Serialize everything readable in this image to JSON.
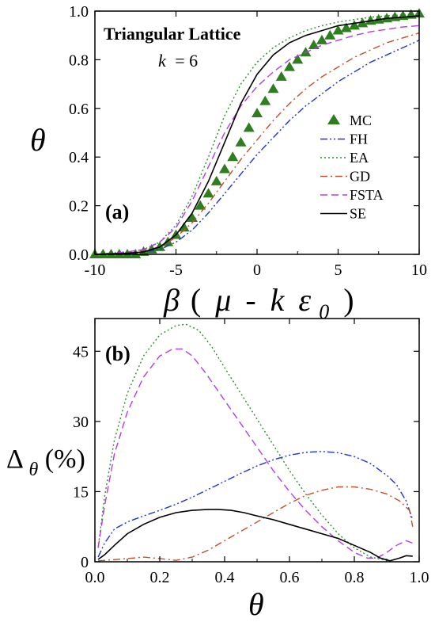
{
  "chart_data": [
    {
      "type": "line",
      "panel_label": "(a)",
      "heading": "Triangular Lattice",
      "parameter": {
        "symbol": "k",
        "equals": "= 6"
      },
      "ylabel": "θ",
      "xlabel": {
        "beta": "β",
        "open": "(",
        "mu": "μ",
        "minus": "-",
        "k": "k",
        "eps": "ε",
        "sub": "0",
        "close": ")"
      },
      "xlim": [
        -10,
        10
      ],
      "ylim": [
        0,
        1
      ],
      "xticks": [
        "-10",
        "-5",
        "0",
        "5",
        "10"
      ],
      "yticks": [
        "0.0",
        "0.2",
        "0.4",
        "0.6",
        "0.8",
        "1.0"
      ],
      "legend_position": "right",
      "series": [
        {
          "name": "MC",
          "style": "triangle",
          "color": "#2e7d1e",
          "x": [
            -10,
            -9.5,
            -9,
            -8.5,
            -8,
            -7.5,
            -7,
            -6.5,
            -6,
            -5.5,
            -5,
            -4.5,
            -4,
            -3.5,
            -3,
            -2.5,
            -2,
            -1.5,
            -1,
            -0.5,
            0,
            0.5,
            1,
            1.5,
            2,
            2.5,
            3,
            3.5,
            4,
            4.5,
            5,
            5.5,
            6,
            6.5,
            7,
            7.5,
            8,
            8.5,
            9,
            9.5,
            10
          ],
          "y": [
            0.0,
            0.0,
            0.0,
            0.0,
            0.0,
            0.0,
            0.01,
            0.02,
            0.03,
            0.05,
            0.08,
            0.11,
            0.15,
            0.2,
            0.25,
            0.3,
            0.35,
            0.4,
            0.46,
            0.52,
            0.58,
            0.63,
            0.68,
            0.73,
            0.77,
            0.8,
            0.83,
            0.86,
            0.88,
            0.9,
            0.92,
            0.93,
            0.94,
            0.95,
            0.96,
            0.965,
            0.97,
            0.975,
            0.98,
            0.985,
            0.99
          ]
        },
        {
          "name": "FH",
          "style": "dashdotdot",
          "color": "#2233cc",
          "x": [
            -10,
            -8,
            -6,
            -5,
            -4,
            -3,
            -2,
            -1,
            0,
            1,
            2,
            3,
            4,
            5,
            6,
            7,
            8,
            9,
            10
          ],
          "y": [
            0.0,
            0.002,
            0.02,
            0.05,
            0.1,
            0.17,
            0.25,
            0.33,
            0.41,
            0.48,
            0.55,
            0.61,
            0.66,
            0.71,
            0.75,
            0.79,
            0.82,
            0.85,
            0.88
          ]
        },
        {
          "name": "EA",
          "style": "dotted",
          "color": "#2e8b2e",
          "x": [
            -10,
            -8,
            -7,
            -6,
            -5,
            -4,
            -3,
            -2,
            -1,
            0,
            1,
            2,
            3,
            4,
            5,
            6,
            7,
            8,
            9,
            10
          ],
          "y": [
            0.0,
            0.01,
            0.02,
            0.05,
            0.12,
            0.24,
            0.4,
            0.57,
            0.7,
            0.79,
            0.85,
            0.89,
            0.92,
            0.94,
            0.955,
            0.965,
            0.975,
            0.98,
            0.985,
            0.99
          ]
        },
        {
          "name": "GD",
          "style": "dashdot",
          "color": "#c0502a",
          "x": [
            -10,
            -8,
            -6,
            -5,
            -4,
            -3,
            -2,
            -1,
            0,
            1,
            2,
            3,
            4,
            5,
            6,
            7,
            8,
            9,
            10
          ],
          "y": [
            0.0,
            0.005,
            0.03,
            0.07,
            0.13,
            0.21,
            0.3,
            0.39,
            0.47,
            0.55,
            0.62,
            0.68,
            0.73,
            0.77,
            0.81,
            0.84,
            0.87,
            0.89,
            0.91
          ]
        },
        {
          "name": "FSTA",
          "style": "dashed",
          "color": "#b23cf0",
          "x": [
            -10,
            -8,
            -7,
            -6,
            -5,
            -4,
            -3,
            -2,
            -1,
            0,
            1,
            2,
            3,
            4,
            5,
            6,
            7,
            8,
            9,
            10
          ],
          "y": [
            0.0,
            0.01,
            0.02,
            0.05,
            0.11,
            0.22,
            0.36,
            0.5,
            0.61,
            0.69,
            0.75,
            0.8,
            0.83,
            0.86,
            0.88,
            0.9,
            0.915,
            0.925,
            0.935,
            0.94
          ]
        },
        {
          "name": "SE",
          "style": "solid",
          "color": "#000000",
          "x": [
            -10,
            -8,
            -7,
            -6,
            -5,
            -4,
            -3,
            -2,
            -1,
            0,
            1,
            2,
            3,
            4,
            5,
            6,
            7,
            8,
            9,
            10
          ],
          "y": [
            0.0,
            0.005,
            0.01,
            0.03,
            0.08,
            0.17,
            0.3,
            0.46,
            0.62,
            0.74,
            0.82,
            0.87,
            0.9,
            0.92,
            0.94,
            0.95,
            0.96,
            0.97,
            0.975,
            0.98
          ]
        }
      ]
    },
    {
      "type": "line",
      "panel_label": "(b)",
      "ylabel": {
        "delta": "Δ",
        "sub": "θ",
        "pct": "(%)"
      },
      "xlabel": "θ",
      "xlim": [
        0,
        1
      ],
      "ylim": [
        0,
        52
      ],
      "xticks": [
        "0.0",
        "0.2",
        "0.4",
        "0.6",
        "0.8",
        "1.0"
      ],
      "yticks": [
        "0",
        "15",
        "30",
        "45"
      ],
      "series": [
        {
          "name": "FH",
          "style": "dashdotdot",
          "color": "#2233cc",
          "x": [
            0.01,
            0.03,
            0.06,
            0.1,
            0.15,
            0.2,
            0.25,
            0.3,
            0.35,
            0.4,
            0.45,
            0.5,
            0.55,
            0.6,
            0.65,
            0.7,
            0.75,
            0.8,
            0.85,
            0.9,
            0.93,
            0.96,
            0.98
          ],
          "y": [
            1,
            4,
            7,
            8.5,
            9.8,
            11,
            12.3,
            13.8,
            15.5,
            17.2,
            18.9,
            20.5,
            21.8,
            22.8,
            23.4,
            23.6,
            23.3,
            22.5,
            21,
            18.5,
            16.5,
            13,
            9
          ]
        },
        {
          "name": "EA",
          "style": "dotted",
          "color": "#2e8b2e",
          "x": [
            0.01,
            0.03,
            0.06,
            0.1,
            0.15,
            0.2,
            0.25,
            0.28,
            0.32,
            0.36,
            0.4,
            0.45,
            0.5,
            0.55,
            0.6,
            0.65,
            0.7,
            0.75,
            0.8,
            0.85,
            0.9
          ],
          "y": [
            3,
            14,
            26,
            36,
            44,
            48.5,
            50.5,
            50.8,
            49.5,
            46,
            41.5,
            36,
            30.5,
            25,
            19.5,
            14.5,
            10,
            6,
            3,
            1,
            0.3
          ]
        },
        {
          "name": "GD",
          "style": "dashdot",
          "color": "#c0502a",
          "x": [
            0.01,
            0.05,
            0.1,
            0.15,
            0.2,
            0.25,
            0.3,
            0.35,
            0.4,
            0.45,
            0.5,
            0.55,
            0.6,
            0.65,
            0.7,
            0.75,
            0.8,
            0.85,
            0.9,
            0.94,
            0.97,
            0.98
          ],
          "y": [
            0.2,
            0.4,
            0.7,
            1.0,
            0.7,
            0.3,
            1.0,
            2.5,
            4.5,
            6.5,
            8.5,
            10.5,
            12.5,
            14.2,
            15.3,
            16,
            16,
            15.5,
            14.5,
            13,
            11,
            7.5
          ]
        },
        {
          "name": "FSTA",
          "style": "dashed",
          "color": "#b23cf0",
          "x": [
            0.01,
            0.03,
            0.06,
            0.1,
            0.15,
            0.2,
            0.24,
            0.27,
            0.3,
            0.34,
            0.38,
            0.42,
            0.46,
            0.5,
            0.55,
            0.6,
            0.65,
            0.7,
            0.75,
            0.8,
            0.84,
            0.87,
            0.9,
            0.93,
            0.96,
            0.98
          ],
          "y": [
            3,
            12,
            23,
            32,
            39.5,
            44,
            45.5,
            45.5,
            44,
            40.5,
            36.5,
            32.5,
            28.5,
            24.5,
            19.5,
            15,
            11,
            7.5,
            4.5,
            2,
            0.8,
            0.8,
            2,
            3.5,
            4.5,
            4
          ]
        },
        {
          "name": "SE",
          "style": "solid",
          "color": "#000000",
          "x": [
            0.01,
            0.03,
            0.06,
            0.1,
            0.15,
            0.2,
            0.25,
            0.3,
            0.35,
            0.38,
            0.42,
            0.46,
            0.5,
            0.55,
            0.6,
            0.65,
            0.7,
            0.75,
            0.8,
            0.85,
            0.88,
            0.91,
            0.94,
            0.96,
            0.98
          ],
          "y": [
            0.5,
            1.5,
            3.5,
            6,
            8,
            9.5,
            10.5,
            11,
            11.2,
            11.2,
            11,
            10.5,
            9.8,
            9,
            8,
            7,
            6,
            5,
            3.5,
            2,
            0.8,
            0.2,
            0.8,
            1.3,
            1.2
          ]
        }
      ]
    }
  ]
}
